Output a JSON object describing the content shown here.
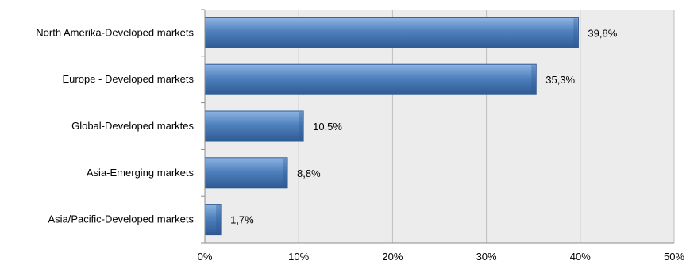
{
  "chart_data": {
    "type": "bar",
    "orientation": "horizontal",
    "categories": [
      "North Amerika-Developed markets",
      "Europe - Developed markets",
      "Global-Developed marktes",
      "Asia-Emerging markets",
      "Asia/Pacific-Developed markets"
    ],
    "values": [
      39.8,
      35.3,
      10.5,
      8.8,
      1.7
    ],
    "value_labels": [
      "39,8%",
      "35,3%",
      "10,5%",
      "8,8%",
      "1,7%"
    ],
    "xlim": [
      0,
      50
    ],
    "xticks": [
      0,
      10,
      20,
      30,
      40,
      50
    ],
    "xtick_labels": [
      "0%",
      "10%",
      "20%",
      "30%",
      "40%",
      "50%"
    ],
    "title": "",
    "xlabel": "",
    "ylabel": "",
    "grid": true,
    "colors": {
      "bar_light": "#8fb4e3",
      "bar_mid": "#4f81bd",
      "bar_dark": "#2f5a94",
      "plot_bg": "#ececec",
      "grid": "#bdbdbd"
    }
  }
}
